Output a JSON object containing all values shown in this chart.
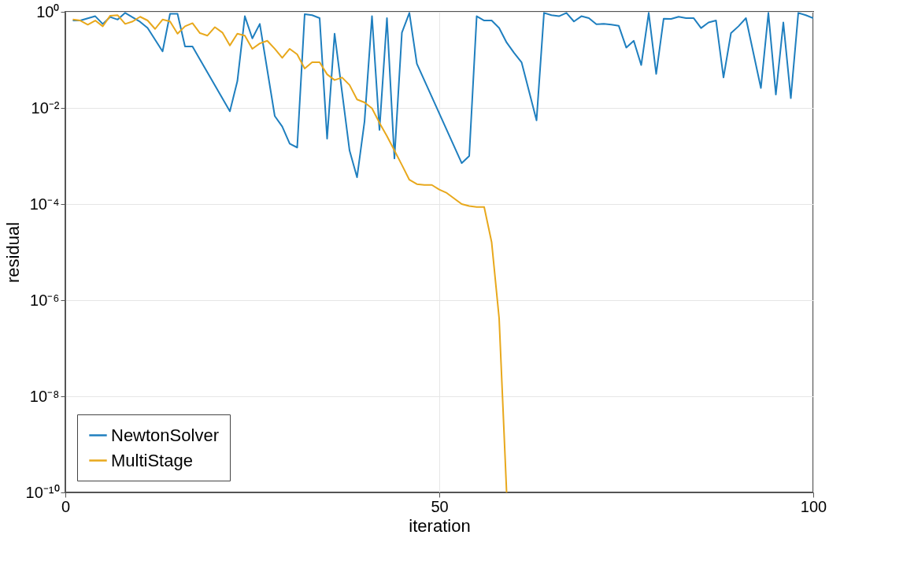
{
  "chart_data": {
    "type": "line",
    "xlabel": "iteration",
    "ylabel": "residual",
    "log": "y",
    "grid": true,
    "legend": "bottom left",
    "marker": "none",
    "line_style": "solid",
    "xlim": [
      0,
      100
    ],
    "xticks": [
      0,
      50,
      100
    ],
    "ylim": [
      1e-10,
      1
    ],
    "yticks": [
      {
        "value": 1e-10,
        "label": "10⁻¹⁰"
      },
      {
        "value": 1e-08,
        "label": "10⁻⁸"
      },
      {
        "value": 1e-06,
        "label": "10⁻⁶"
      },
      {
        "value": 0.0001,
        "label": "10⁻⁴"
      },
      {
        "value": 0.01,
        "label": "10⁻²"
      },
      {
        "value": 1,
        "label": "10⁰"
      }
    ],
    "series": [
      {
        "name": "NewtonSolver",
        "color": "#1f7fbf",
        "x": [
          1,
          2,
          4,
          5,
          6,
          7,
          8,
          10,
          11,
          13,
          14,
          15,
          16,
          17,
          22,
          23,
          24,
          25,
          26,
          28,
          29,
          30,
          31,
          32,
          33,
          34,
          35,
          36,
          38,
          39,
          40,
          41,
          42,
          43,
          44,
          45,
          46,
          47,
          53,
          54,
          55,
          56,
          57,
          58,
          59,
          60,
          61,
          63,
          64,
          65,
          66,
          67,
          68,
          69,
          70,
          71,
          72,
          73,
          74,
          75,
          76,
          77,
          78,
          79,
          80,
          81,
          82,
          83,
          84,
          85,
          86,
          87,
          88,
          89,
          90,
          91,
          93,
          94,
          95,
          96,
          97,
          98,
          99,
          100
        ],
        "values": [
          0.66,
          0.66,
          0.81,
          0.56,
          0.78,
          0.69,
          0.95,
          0.62,
          0.46,
          0.15,
          0.91,
          0.91,
          0.19,
          0.19,
          0.0085,
          0.036,
          0.81,
          0.28,
          0.56,
          0.0068,
          0.0041,
          0.0018,
          0.0015,
          0.89,
          0.85,
          0.74,
          0.0023,
          0.35,
          0.0013,
          0.00036,
          0.0052,
          0.81,
          0.0035,
          0.74,
          0.00089,
          0.37,
          0.95,
          0.083,
          0.00071,
          0.001,
          0.81,
          0.66,
          0.66,
          0.46,
          0.23,
          0.14,
          0.089,
          0.0055,
          0.95,
          0.85,
          0.81,
          0.95,
          0.63,
          0.81,
          0.74,
          0.55,
          0.56,
          0.54,
          0.51,
          0.18,
          0.25,
          0.078,
          0.95,
          0.051,
          0.72,
          0.71,
          0.79,
          0.74,
          0.74,
          0.46,
          0.6,
          0.66,
          0.043,
          0.36,
          0.5,
          0.74,
          0.026,
          0.95,
          0.019,
          0.6,
          0.016,
          0.95,
          0.85,
          0.74
        ]
      },
      {
        "name": "MultiStage",
        "color": "#e8a81c",
        "x": [
          1,
          2,
          3,
          4,
          5,
          6,
          7,
          8,
          9,
          10,
          11,
          12,
          13,
          14,
          15,
          16,
          17,
          18,
          19,
          20,
          21,
          22,
          23,
          24,
          25,
          26,
          27,
          28,
          29,
          30,
          31,
          32,
          33,
          34,
          35,
          36,
          37,
          38,
          39,
          40,
          41,
          42,
          43,
          44,
          45,
          46,
          47,
          48,
          49,
          50,
          51,
          52,
          53,
          54,
          55,
          56,
          57,
          58,
          59
        ],
        "values": [
          0.69,
          0.66,
          0.54,
          0.66,
          0.5,
          0.83,
          0.85,
          0.56,
          0.63,
          0.79,
          0.66,
          0.44,
          0.69,
          0.63,
          0.35,
          0.5,
          0.58,
          0.36,
          0.32,
          0.48,
          0.37,
          0.2,
          0.35,
          0.32,
          0.17,
          0.22,
          0.25,
          0.17,
          0.11,
          0.17,
          0.13,
          0.066,
          0.089,
          0.089,
          0.05,
          0.038,
          0.043,
          0.03,
          0.015,
          0.013,
          0.0098,
          0.0049,
          0.0026,
          0.0013,
          0.00065,
          0.00032,
          0.00026,
          0.00025,
          0.00025,
          0.0002,
          0.00017,
          0.00013,
          0.0001,
          9.1e-05,
          8.7e-05,
          8.7e-05,
          1.6e-05,
          4.2e-07,
          1e-10
        ]
      }
    ]
  }
}
